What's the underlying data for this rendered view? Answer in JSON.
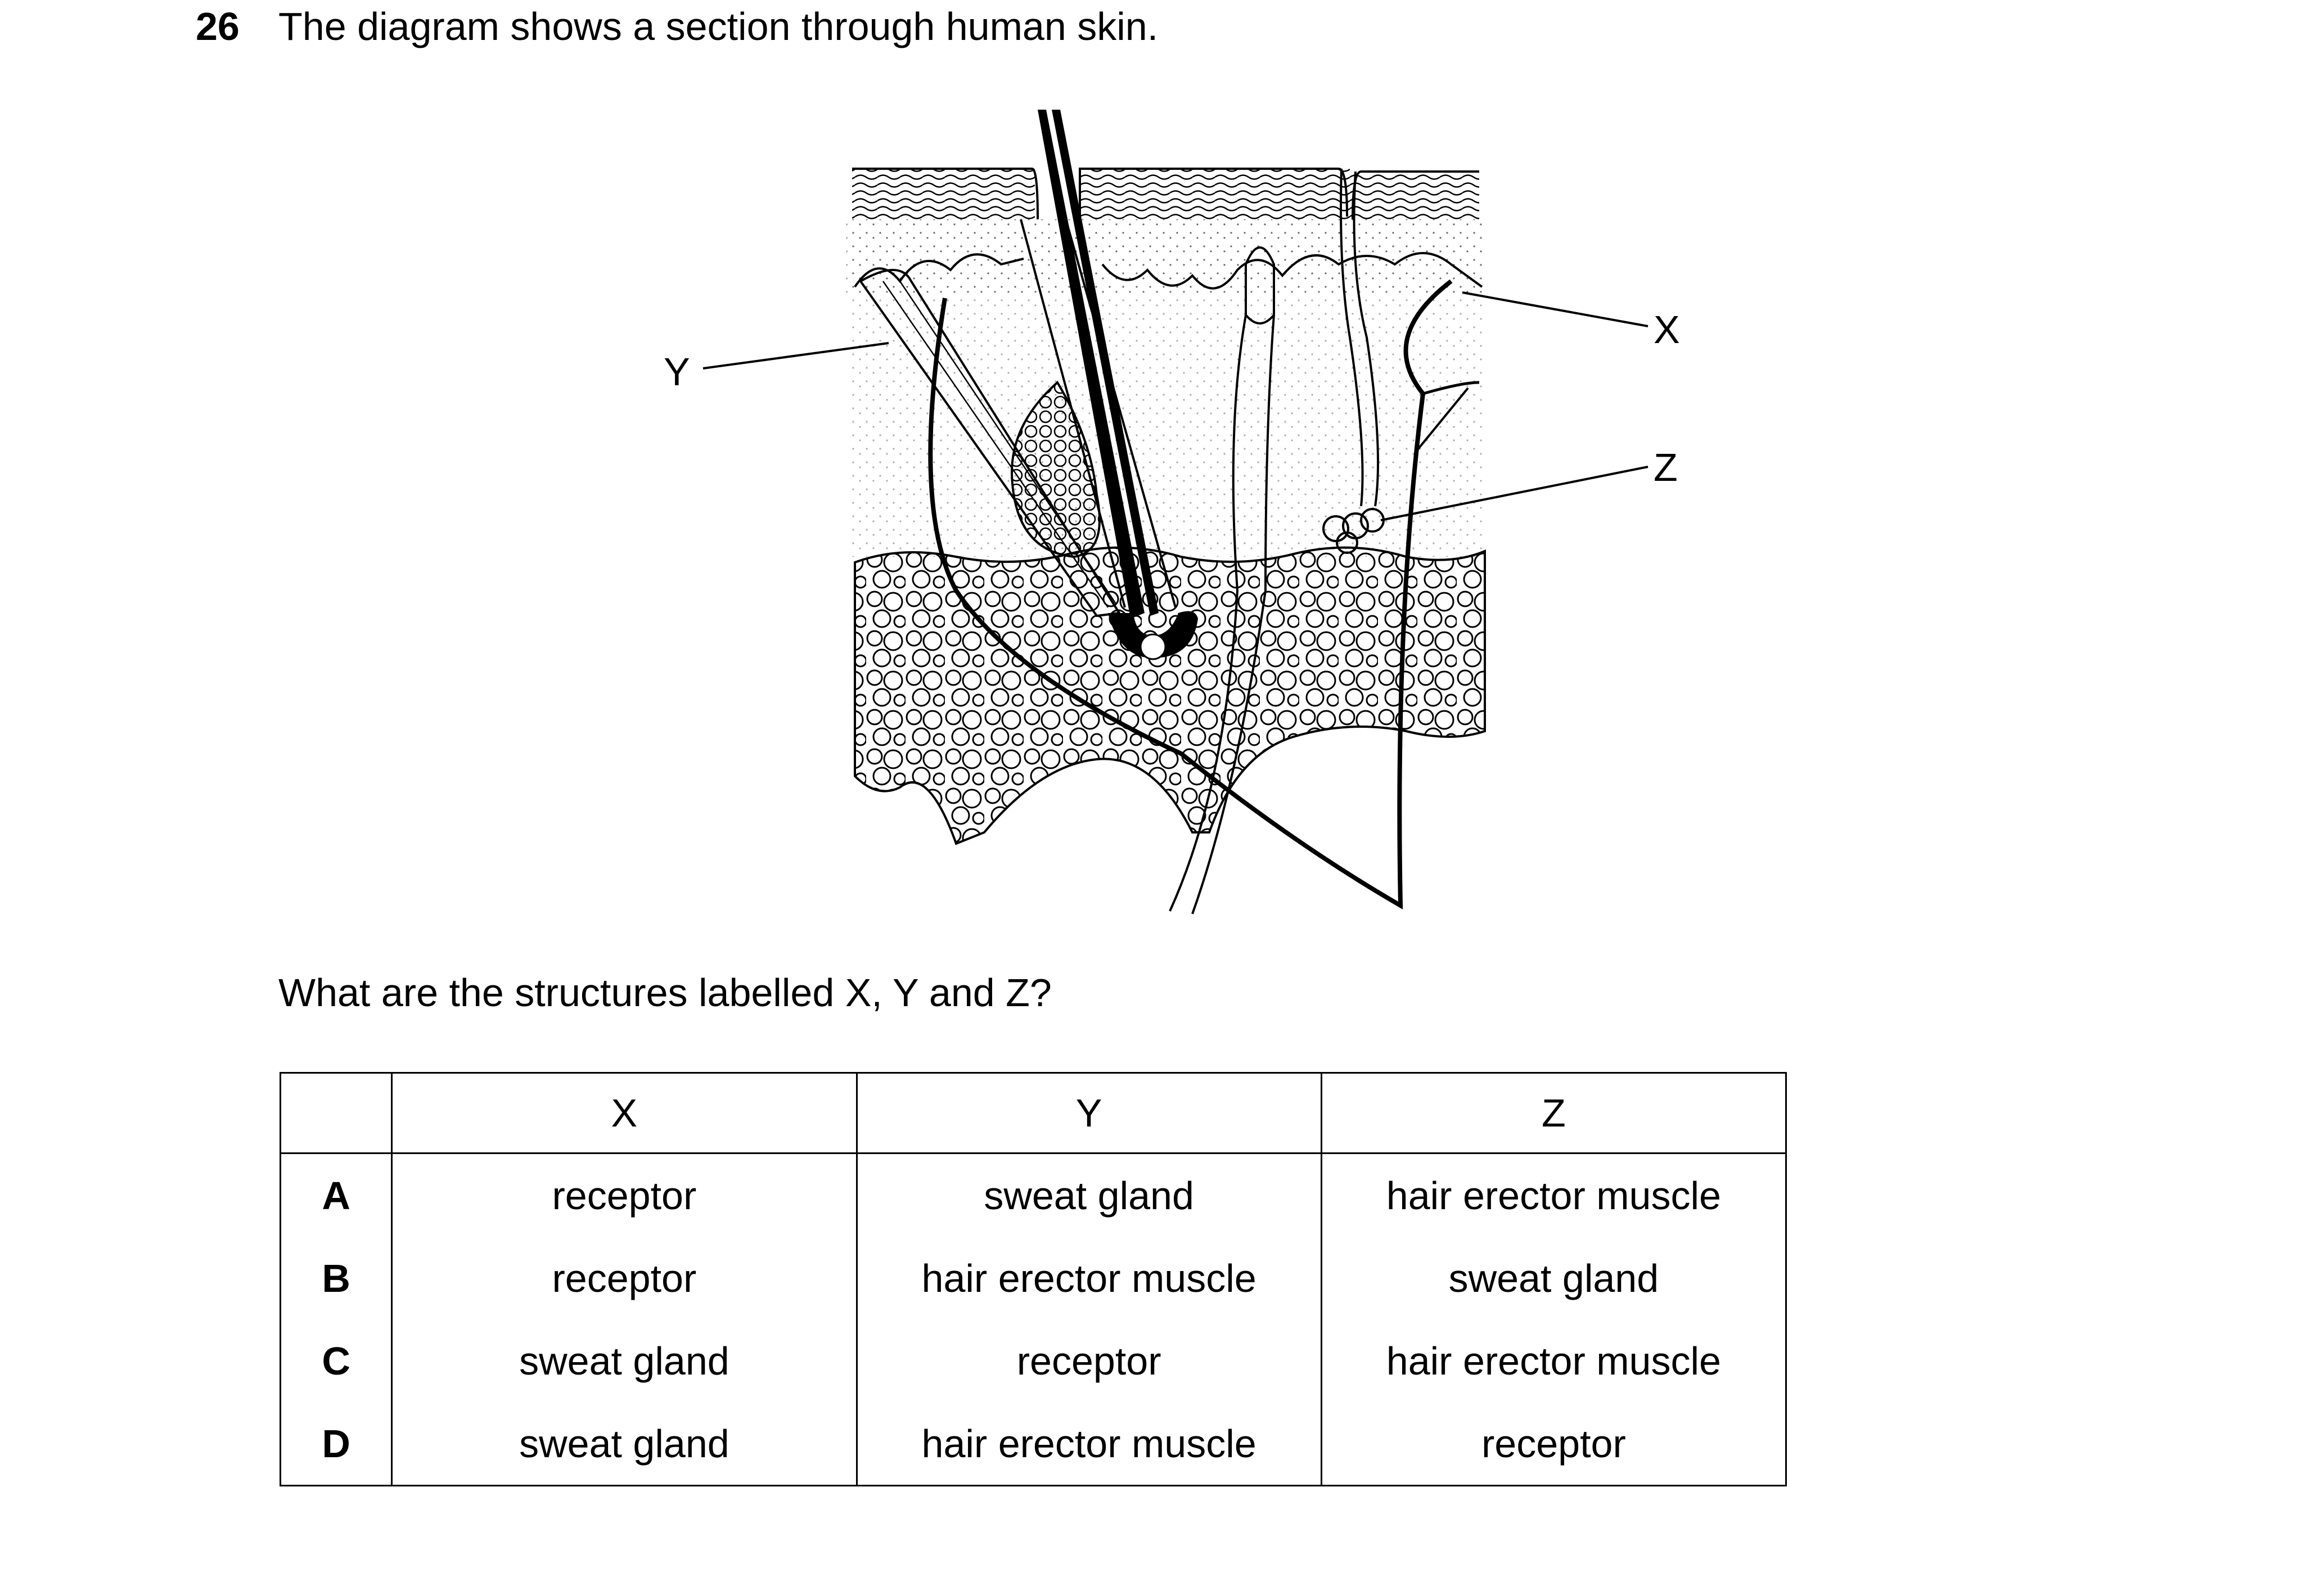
{
  "question": {
    "number": "26",
    "text": "The diagram shows a section through human skin.",
    "prompt": "What are the structures labelled X, Y and Z?"
  },
  "diagram": {
    "labels": {
      "x": "X",
      "y": "Y",
      "z": "Z"
    }
  },
  "table": {
    "headers": [
      "",
      "X",
      "Y",
      "Z"
    ],
    "rows": [
      {
        "letter": "A",
        "x": "receptor",
        "y": "sweat gland",
        "z": "hair erector muscle"
      },
      {
        "letter": "B",
        "x": "receptor",
        "y": "hair erector muscle",
        "z": "sweat gland"
      },
      {
        "letter": "C",
        "x": "sweat gland",
        "y": "receptor",
        "z": "hair erector muscle"
      },
      {
        "letter": "D",
        "x": "sweat gland",
        "y": "hair erector muscle",
        "z": "receptor"
      }
    ]
  }
}
